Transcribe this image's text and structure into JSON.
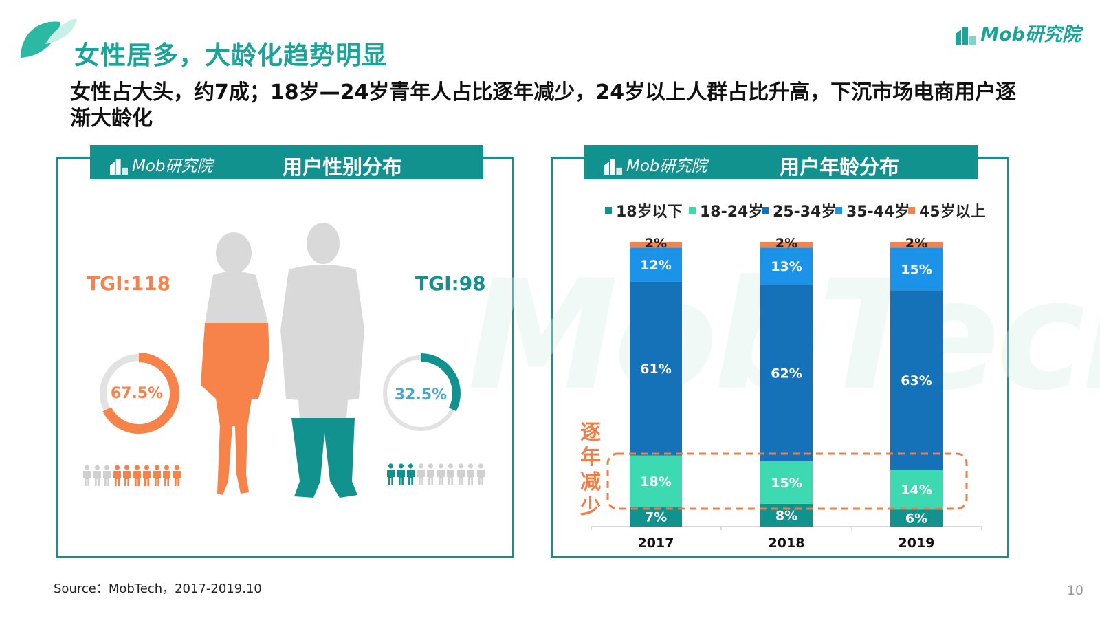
{
  "header": {
    "title": "女性居多，大龄化趋势明显",
    "subtitle": "女性占大头，约7成；18岁—24岁青年人占比逐年减少，24岁以上人群占比升高，下沉市场电商用户逐渐大龄化",
    "brand_logo": "Mob研究院"
  },
  "gender_panel": {
    "logo": "Mob研究院",
    "title": "用户性别分布",
    "female": {
      "tgi": "TGI:118",
      "share_label": "67.5%",
      "share": 67.5,
      "color": "#f7834a",
      "people_filled": 7,
      "people_total": 10
    },
    "male": {
      "tgi": "TGI:98",
      "share_label": "32.5%",
      "share": 32.5,
      "color": "#12928f",
      "people_filled": 3,
      "people_total": 10
    }
  },
  "age_panel": {
    "logo": "Mob研究院",
    "title": "用户年龄分布",
    "annotation": "逐年减少",
    "watermark": "MobTech"
  },
  "chart_data": {
    "type": "bar",
    "stacked": true,
    "categories": [
      "2017",
      "2018",
      "2019"
    ],
    "series": [
      {
        "name": "18岁以下",
        "color": "#12928f",
        "values": [
          7,
          8,
          6
        ]
      },
      {
        "name": "18-24岁",
        "color": "#3dd9b0",
        "values": [
          18,
          15,
          14
        ]
      },
      {
        "name": "25-34岁",
        "color": "#1672b8",
        "values": [
          61,
          62,
          63
        ]
      },
      {
        "name": "35-44岁",
        "color": "#1a93e8",
        "values": [
          12,
          13,
          15
        ]
      },
      {
        "name": "45岁以上",
        "color": "#f7834a",
        "values": [
          2,
          2,
          2
        ]
      }
    ],
    "legend_position": "top",
    "ylim": [
      0,
      100
    ],
    "unit": "%"
  },
  "footer": {
    "source": "Source：MobTech，2017-2019.10",
    "page_number": "10"
  }
}
